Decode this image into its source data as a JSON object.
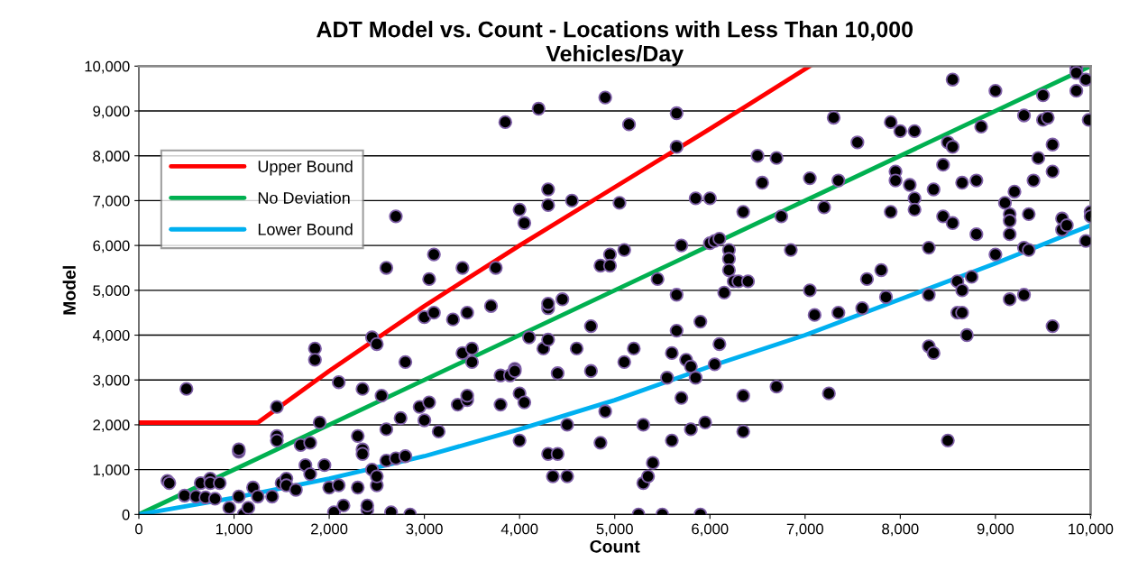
{
  "chart_data": {
    "type": "scatter",
    "title": "ADT Model vs. Count - Locations with Less Than 10,000\nVehicles/Day",
    "xlabel": "Count",
    "ylabel": "Model",
    "xlim": [
      0,
      10000
    ],
    "ylim": [
      0,
      10000
    ],
    "xticks": [
      0,
      {
        "value": 1000,
        "label": "1,000"
      },
      {
        "value": 2000,
        "label": "2,000"
      },
      {
        "value": 3000,
        "label": "3,000"
      },
      {
        "value": 4000,
        "label": "4,000"
      },
      {
        "value": 5000,
        "label": "5,000"
      },
      {
        "value": 6000,
        "label": "6,000"
      },
      {
        "value": 7000,
        "label": "7,000"
      },
      {
        "value": 8000,
        "label": "8,000"
      },
      {
        "value": 9000,
        "label": "9,000"
      },
      {
        "value": 10000,
        "label": "10,000"
      }
    ],
    "yticks": [
      0,
      {
        "value": 1000,
        "label": "1,000"
      },
      {
        "value": 2000,
        "label": "2,000"
      },
      {
        "value": 3000,
        "label": "3,000"
      },
      {
        "value": 4000,
        "label": "4,000"
      },
      {
        "value": 5000,
        "label": "5,000"
      },
      {
        "value": 6000,
        "label": "6,000"
      },
      {
        "value": 7000,
        "label": "7,000"
      },
      {
        "value": 8000,
        "label": "8,000"
      },
      {
        "value": 9000,
        "label": "9,000"
      },
      {
        "value": 10000,
        "label": "10,000"
      }
    ],
    "grid": "y",
    "legend": "upper left",
    "marker": "circle",
    "series": [
      {
        "color": "#000000",
        "x": [
          300,
          320,
          480,
          500,
          600,
          650,
          700,
          750,
          750,
          800,
          850,
          950,
          1050,
          1050,
          1050,
          1100,
          1150,
          1200,
          1250,
          1400,
          1450,
          1450,
          1450,
          1500,
          1550,
          1550,
          1650,
          1700,
          1750,
          1800,
          1800,
          1850,
          1850,
          1900,
          1950,
          2000,
          2050,
          2100,
          2100,
          2150,
          2300,
          2300,
          2350,
          2350,
          2350,
          2400,
          2400,
          2450,
          2450,
          2500,
          2500,
          2500,
          2550,
          2600,
          2600,
          2600,
          2650,
          2700,
          2700,
          2750,
          2800,
          2800,
          2850,
          2950,
          3000,
          3000,
          3050,
          3050,
          3100,
          3100,
          3150,
          3300,
          3350,
          3400,
          3400,
          3450,
          3450,
          3450,
          3500,
          3500,
          3700,
          3750,
          3800,
          3800,
          3850,
          3900,
          3950,
          3950,
          4000,
          4000,
          4000,
          4050,
          4050,
          4100,
          4200,
          4250,
          4300,
          4300,
          4300,
          4300,
          4300,
          4300,
          4350,
          4400,
          4400,
          4450,
          4500,
          4500,
          4550,
          4600,
          4750,
          4750,
          4850,
          4850,
          4900,
          4900,
          4950,
          4950,
          5050,
          5100,
          5100,
          5150,
          5200,
          5250,
          5300,
          5300,
          5350,
          5400,
          5450,
          5500,
          5550,
          5600,
          5600,
          5650,
          5650,
          5650,
          5650,
          5700,
          5700,
          5750,
          5800,
          5800,
          5850,
          5850,
          5900,
          5900,
          5950,
          6000,
          6000,
          6050,
          6050,
          6100,
          6100,
          6150,
          6200,
          6200,
          6200,
          6250,
          6300,
          6350,
          6350,
          6350,
          6400,
          6500,
          6550,
          6700,
          6700,
          6750,
          6850,
          7050,
          7050,
          7100,
          7200,
          7250,
          7300,
          7350,
          7350,
          7550,
          7600,
          7650,
          7800,
          7850,
          7900,
          7900,
          7950,
          7950,
          8000,
          8100,
          8150,
          8150,
          8150,
          8300,
          8300,
          8300,
          8350,
          8350,
          8450,
          8450,
          8500,
          8500,
          8550,
          8550,
          8550,
          8600,
          8600,
          8650,
          8650,
          8650,
          8700,
          8750,
          8800,
          8800,
          8850,
          9000,
          9000,
          9100,
          9150,
          9150,
          9150,
          9150,
          9200,
          9300,
          9300,
          9300,
          9350,
          9350,
          9400,
          9450,
          9500,
          9500,
          9550,
          9600,
          9600,
          9600,
          9700,
          9700,
          9750,
          9850,
          9850,
          9850,
          9950,
          9950,
          9980,
          10000,
          10000
        ],
        "values": [
          750,
          700,
          420,
          2800,
          400,
          700,
          380,
          800,
          700,
          350,
          700,
          150,
          1400,
          1450,
          400,
          0,
          150,
          600,
          400,
          400,
          1750,
          1650,
          2400,
          700,
          800,
          650,
          550,
          1550,
          1100,
          900,
          1600,
          3700,
          3450,
          2050,
          1100,
          600,
          50,
          650,
          2950,
          200,
          1750,
          600,
          1450,
          1350,
          2800,
          100,
          200,
          1000,
          3950,
          3800,
          650,
          850,
          2650,
          1900,
          1200,
          5500,
          50,
          6650,
          1250,
          2150,
          3400,
          1300,
          0,
          2400,
          4400,
          2100,
          5250,
          2500,
          4500,
          5800,
          1850,
          4350,
          2450,
          5500,
          3600,
          4500,
          2550,
          2650,
          3700,
          3400,
          4650,
          5500,
          3100,
          2450,
          8750,
          3100,
          3250,
          3200,
          6800,
          1650,
          2700,
          2500,
          6500,
          3950,
          9050,
          3700,
          7250,
          6900,
          3900,
          4600,
          4700,
          1350,
          850,
          1350,
          3150,
          4800,
          850,
          2000,
          7000,
          3700,
          3200,
          4200,
          5550,
          1600,
          9300,
          2300,
          5800,
          5550,
          6950,
          3400,
          5900,
          8700,
          3700,
          0,
          2000,
          700,
          850,
          1150,
          5250,
          0,
          3050,
          3600,
          1650,
          8950,
          8200,
          4100,
          4900,
          6000,
          2600,
          3450,
          3300,
          1900,
          7050,
          3050,
          4300,
          0,
          2050,
          6050,
          7050,
          3350,
          6100,
          6150,
          3800,
          4950,
          5900,
          5700,
          5450,
          5200,
          5200,
          2650,
          6750,
          1850,
          5200,
          8000,
          7400,
          7950,
          2850,
          6650,
          5900,
          7500,
          5000,
          4450,
          6850,
          2700,
          8850,
          7450,
          4500,
          8300,
          4600,
          5250,
          5450,
          4850,
          6750,
          8750,
          7650,
          7450,
          8550,
          7350,
          8550,
          7050,
          6800,
          3750,
          5950,
          4900,
          3600,
          7250,
          7800,
          6650,
          8300,
          1650,
          8200,
          9700,
          6500,
          5200,
          4500,
          7400,
          5000,
          4500,
          4000,
          5300,
          7450,
          6250,
          8650,
          9450,
          5800,
          6950,
          6250,
          6700,
          6550,
          4800,
          7200,
          8900,
          5950,
          4900,
          5900,
          6700,
          7450,
          7950,
          9350,
          8800,
          8850,
          7650,
          8250,
          4200,
          6600,
          6350,
          6450,
          9950,
          9850,
          9450,
          6100,
          9700,
          8800,
          6750,
          6650
        ]
      },
      {
        "name": "Upper Bound",
        "type": "line",
        "color": "#ff0000",
        "marker": "none",
        "x": [
          0,
          1250,
          2000,
          3000,
          4000,
          5000,
          6000,
          7050
        ],
        "values": [
          2050,
          2050,
          3200,
          4650,
          6000,
          7300,
          8600,
          10000
        ]
      },
      {
        "name": "No Deviation",
        "type": "line",
        "color": "#00b050",
        "marker": "none",
        "x": [
          0,
          10000
        ],
        "values": [
          0,
          10000
        ]
      },
      {
        "name": "Lower Bound",
        "type": "line",
        "color": "#00b0f0",
        "marker": "none",
        "x": [
          0,
          1000,
          2000,
          3000,
          4000,
          5000,
          6000,
          7000,
          8000,
          9000,
          10000
        ],
        "values": [
          0,
          370,
          800,
          1300,
          1900,
          2550,
          3300,
          4000,
          4800,
          5600,
          6450
        ]
      }
    ]
  }
}
